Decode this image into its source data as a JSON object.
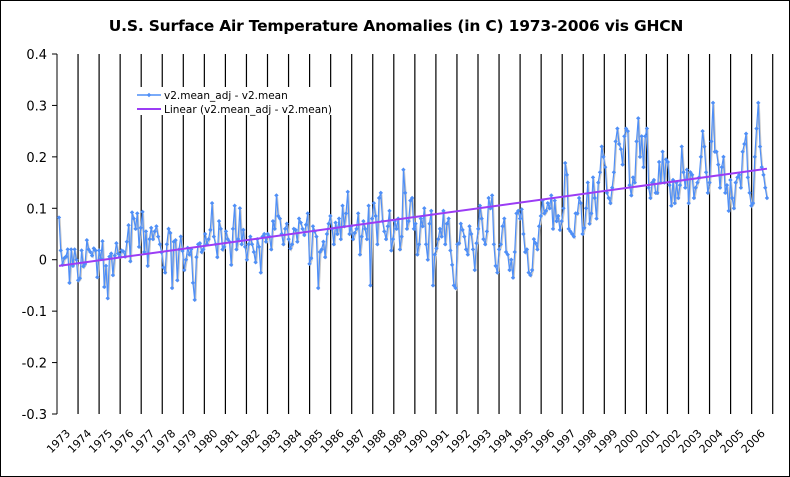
{
  "chart_data": {
    "type": "line",
    "title": "U.S. Surface Air Temperature Anomalies (in C) 1973-2006 vis GHCN",
    "xlabel": "",
    "ylabel": "",
    "ylim": [
      -0.3,
      0.4
    ],
    "yticks": [
      -0.3,
      -0.2,
      -0.1,
      0,
      0.1,
      0.2,
      0.3,
      0.4
    ],
    "ytick_labels": [
      "-0.3",
      "-0.2",
      "-0.1",
      "0",
      "0.1",
      "0.2",
      "0.3",
      "0.4"
    ],
    "categories": [
      "1973",
      "1974",
      "1975",
      "1976",
      "1977",
      "1978",
      "1979",
      "1980",
      "1981",
      "1982",
      "1983",
      "1984",
      "1985",
      "1986",
      "1987",
      "1988",
      "1989",
      "1990",
      "1991",
      "1992",
      "1993",
      "1994",
      "1995",
      "1996",
      "1997",
      "1998",
      "1999",
      "2000",
      "2001",
      "2002",
      "2003",
      "2004",
      "2005",
      "2006"
    ],
    "grid": "vertical lines at each year",
    "legend": {
      "position": "upper-left",
      "entries": [
        "v2.mean_adj - v2.mean",
        "Linear (v2.mean_adj - v2.mean)"
      ]
    },
    "series": [
      {
        "name": "v2.mean_adj - v2.mean",
        "color": "#4f8ff7",
        "marker": "diamond",
        "frequency": "monthly",
        "values": [
          0.082,
          0.018,
          -0.01,
          0.003,
          0.006,
          0.02,
          -0.045,
          0.02,
          -0.012,
          0.02,
          0.0,
          -0.04,
          -0.036,
          0.018,
          -0.013,
          -0.008,
          0.038,
          0.02,
          0.015,
          0.008,
          0.022,
          0.018,
          -0.034,
          0.018,
          0.002,
          0.036,
          -0.053,
          -0.012,
          -0.075,
          0.006,
          0.012,
          -0.03,
          0.008,
          0.032,
          0.012,
          0.006,
          0.018,
          0.016,
          0.006,
          0.035,
          0.067,
          -0.003,
          0.092,
          0.08,
          0.06,
          0.09,
          0.025,
          0.062,
          0.093,
          0.015,
          0.055,
          -0.012,
          0.04,
          0.062,
          0.04,
          0.055,
          0.065,
          0.045,
          0.03,
          0.014,
          -0.015,
          -0.025,
          0.03,
          0.06,
          0.052,
          -0.055,
          0.035,
          0.038,
          -0.04,
          0.02,
          0.045,
          0.017,
          -0.02,
          0.0,
          0.023,
          0.01,
          0.02,
          -0.045,
          -0.078,
          0.005,
          0.03,
          0.032,
          0.015,
          0.02,
          0.05,
          0.03,
          0.04,
          0.058,
          0.11,
          0.045,
          0.03,
          0.005,
          0.075,
          0.06,
          0.02,
          0.025,
          0.055,
          0.04,
          0.035,
          -0.01,
          0.06,
          0.105,
          0.02,
          0.04,
          0.1,
          0.03,
          0.058,
          0.025,
          0.0,
          0.03,
          0.045,
          0.03,
          0.015,
          -0.005,
          0.04,
          0.025,
          -0.025,
          0.045,
          0.05,
          0.035,
          0.05,
          0.045,
          0.02,
          0.075,
          0.06,
          0.125,
          0.085,
          0.08,
          0.05,
          0.03,
          0.06,
          0.07,
          0.04,
          0.022,
          0.03,
          0.06,
          0.058,
          0.035,
          0.08,
          0.072,
          0.06,
          0.048,
          0.068,
          0.09,
          -0.008,
          0.003,
          0.065,
          0.055,
          0.045,
          -0.055,
          0.015,
          0.02,
          0.035,
          0.005,
          0.05,
          0.07,
          0.085,
          0.06,
          0.03,
          0.072,
          0.05,
          0.08,
          0.04,
          0.105,
          0.065,
          0.09,
          0.132,
          0.05,
          0.065,
          0.04,
          0.052,
          0.06,
          0.09,
          0.01,
          0.045,
          0.075,
          0.06,
          0.04,
          0.105,
          -0.05,
          0.08,
          0.11,
          0.085,
          0.03,
          0.12,
          0.13,
          0.075,
          0.055,
          0.04,
          0.065,
          0.095,
          0.018,
          0.04,
          0.075,
          0.06,
          0.08,
          0.02,
          0.045,
          0.175,
          0.13,
          0.06,
          0.075,
          0.115,
          0.12,
          0.06,
          0.07,
          0.01,
          0.03,
          0.08,
          0.065,
          0.1,
          0.03,
          0.0,
          0.07,
          0.095,
          -0.05,
          0.01,
          0.022,
          0.04,
          0.06,
          0.045,
          0.095,
          0.03,
          0.07,
          0.08,
          0.018,
          -0.01,
          -0.05,
          -0.055,
          0.03,
          0.032,
          0.07,
          0.058,
          0.045,
          0.02,
          0.01,
          0.065,
          0.05,
          0.02,
          -0.02,
          0.032,
          0.06,
          0.105,
          0.08,
          0.04,
          0.03,
          0.055,
          0.12,
          0.1,
          0.125,
          0.03,
          -0.012,
          -0.025,
          0.02,
          0.03,
          0.065,
          0.08,
          0.015,
          0.01,
          -0.02,
          0.0,
          -0.035,
          0.015,
          0.09,
          0.095,
          0.08,
          0.098,
          0.05,
          0.015,
          0.02,
          -0.025,
          -0.03,
          -0.02,
          0.04,
          0.032,
          0.02,
          0.065,
          0.085,
          0.115,
          0.09,
          0.095,
          0.11,
          0.1,
          0.125,
          0.06,
          0.115,
          0.075,
          0.085,
          0.058,
          0.075,
          0.1,
          0.188,
          0.165,
          0.06,
          0.055,
          0.05,
          0.045,
          0.09,
          0.09,
          0.12,
          0.11,
          0.05,
          0.062,
          0.1,
          0.15,
          0.07,
          0.09,
          0.16,
          0.12,
          0.08,
          0.15,
          0.17,
          0.22,
          0.2,
          0.18,
          0.13,
          0.12,
          0.11,
          0.14,
          0.17,
          0.23,
          0.255,
          0.225,
          0.215,
          0.185,
          0.24,
          0.255,
          0.25,
          0.145,
          0.125,
          0.16,
          0.15,
          0.23,
          0.275,
          0.2,
          0.24,
          0.18,
          0.24,
          0.255,
          0.14,
          0.12,
          0.15,
          0.155,
          0.13,
          0.13,
          0.19,
          0.15,
          0.21,
          0.15,
          0.195,
          0.19,
          0.145,
          0.105,
          0.155,
          0.11,
          0.15,
          0.12,
          0.145,
          0.22,
          0.17,
          0.14,
          0.175,
          0.11,
          0.17,
          0.165,
          0.12,
          0.14,
          0.15,
          0.16,
          0.2,
          0.25,
          0.22,
          0.17,
          0.13,
          0.15,
          0.23,
          0.305,
          0.21,
          0.21,
          0.185,
          0.14,
          0.18,
          0.2,
          0.13,
          0.145,
          0.095,
          0.155,
          0.12,
          0.1,
          0.15,
          0.16,
          0.165,
          0.14,
          0.21,
          0.225,
          0.245,
          0.16,
          0.13,
          0.105,
          0.11,
          0.2,
          0.255,
          0.305,
          0.22,
          0.18,
          0.165,
          0.14,
          0.12
        ],
        "note": "values estimated from pixel positions; monthly 1973-2006"
      },
      {
        "name": "Linear (v2.mean_adj - v2.mean)",
        "color": "#9b3cf5",
        "type": "linear-trend",
        "start": {
          "x": "1973",
          "y": -0.012
        },
        "end": {
          "x": "2006",
          "y": 0.177
        }
      }
    ]
  }
}
